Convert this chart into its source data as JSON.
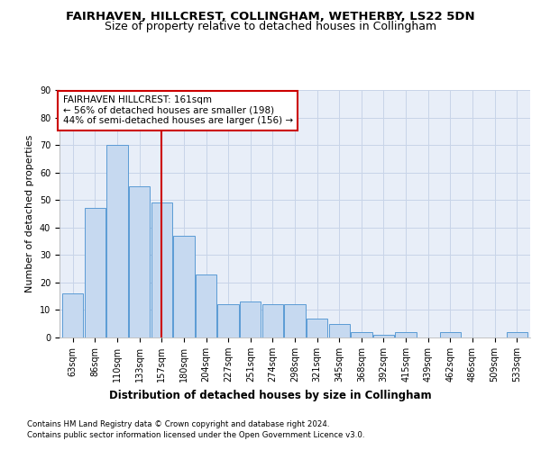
{
  "title": "FAIRHAVEN, HILLCREST, COLLINGHAM, WETHERBY, LS22 5DN",
  "subtitle": "Size of property relative to detached houses in Collingham",
  "xlabel": "Distribution of detached houses by size in Collingham",
  "ylabel": "Number of detached properties",
  "categories": [
    "63sqm",
    "86sqm",
    "110sqm",
    "133sqm",
    "157sqm",
    "180sqm",
    "204sqm",
    "227sqm",
    "251sqm",
    "274sqm",
    "298sqm",
    "321sqm",
    "345sqm",
    "368sqm",
    "392sqm",
    "415sqm",
    "439sqm",
    "462sqm",
    "486sqm",
    "509sqm",
    "533sqm"
  ],
  "values": [
    16,
    47,
    70,
    55,
    49,
    37,
    23,
    12,
    13,
    12,
    12,
    7,
    5,
    2,
    1,
    2,
    0,
    2,
    0,
    0,
    2
  ],
  "bar_color": "#c6d9f0",
  "bar_edge_color": "#5b9bd5",
  "bar_linewidth": 0.7,
  "vline_x_index": 4,
  "vline_color": "#cc0000",
  "vline_label_title": "FAIRHAVEN HILLCREST: 161sqm",
  "vline_label_line1": "← 56% of detached houses are smaller (198)",
  "vline_label_line2": "44% of semi-detached houses are larger (156) →",
  "annotation_box_color": "#cc0000",
  "ylim": [
    0,
    90
  ],
  "yticks": [
    0,
    10,
    20,
    30,
    40,
    50,
    60,
    70,
    80,
    90
  ],
  "grid_color": "#c8d4e8",
  "background_color": "#e8eef8",
  "title_fontsize": 9.5,
  "subtitle_fontsize": 9,
  "xlabel_fontsize": 8.5,
  "ylabel_fontsize": 8,
  "tick_fontsize": 7,
  "annot_fontsize": 7.5,
  "footer_line1": "Contains HM Land Registry data © Crown copyright and database right 2024.",
  "footer_line2": "Contains public sector information licensed under the Open Government Licence v3.0."
}
